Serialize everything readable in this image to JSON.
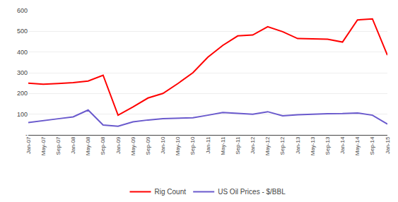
{
  "chart_data": {
    "type": "line",
    "categories": [
      "Jan-07",
      "May-07",
      "Sep-07",
      "Jan-08",
      "May-08",
      "Sep-08",
      "Jan-09",
      "May-09",
      "Sep-09",
      "Jan-10",
      "May-10",
      "Sep-10",
      "Jan-11",
      "May-11",
      "Sep-11",
      "Jan-12",
      "May-12",
      "Sep-12",
      "Jan-13",
      "May-13",
      "Sep-13",
      "Jan-14",
      "May-14",
      "Sep-14",
      "Jan-15"
    ],
    "series": [
      {
        "name": "Rig Count",
        "color": "#FF0000",
        "values": [
          250,
          245,
          248,
          252,
          260,
          288,
          95,
          135,
          178,
          200,
          248,
          300,
          375,
          432,
          478,
          482,
          522,
          498,
          465,
          463,
          462,
          448,
          555,
          560,
          385
        ]
      },
      {
        "name": "US Oil Prices - $/BBL",
        "color": "#6A5ACD",
        "values": [
          60,
          68,
          78,
          87,
          120,
          48,
          42,
          63,
          72,
          78,
          80,
          83,
          95,
          108,
          104,
          100,
          112,
          92,
          97,
          100,
          102,
          103,
          106,
          95,
          52
        ]
      }
    ],
    "ylim": [
      0,
      600
    ],
    "yticks": [
      {
        "value": 0,
        "label": "-"
      },
      100,
      200,
      300,
      400,
      500,
      600
    ],
    "grid": true,
    "legend": "bottom"
  }
}
